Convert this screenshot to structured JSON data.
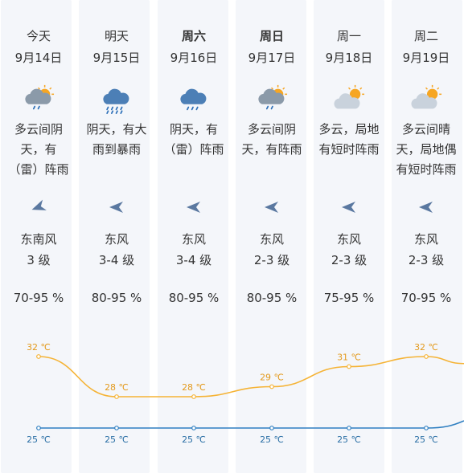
{
  "colors": {
    "column_bg": "#f4f6fa",
    "high_line": "#f5b335",
    "low_line": "#2f7fc1",
    "high_label": "#e39a1d",
    "low_label": "#2a6fa5",
    "arrow": "#5a78a0"
  },
  "days": [
    {
      "day": "今天",
      "bold": false,
      "date": "9月14日",
      "icon": "cloudy-rain-icon",
      "desc_lines": [
        "多云间阴",
        "天，有",
        "（雷）阵雨"
      ],
      "wind_dir": "东南风",
      "wind_level": "3 级",
      "humidity": "70-95 %",
      "high": "32 ℃",
      "low": "25 ℃"
    },
    {
      "day": "明天",
      "bold": false,
      "date": "9月15日",
      "icon": "heavy-rain-icon",
      "desc_lines": [
        "阴天，有大",
        "雨到暴雨"
      ],
      "wind_dir": "东风",
      "wind_level": "3-4 级",
      "humidity": "80-95 %",
      "high": "28 ℃",
      "low": "25 ℃"
    },
    {
      "day": "周六",
      "bold": true,
      "date": "9月16日",
      "icon": "rain-icon",
      "desc_lines": [
        "阴天，有",
        "（雷）阵雨"
      ],
      "wind_dir": "东风",
      "wind_level": "3-4 级",
      "humidity": "80-95 %",
      "high": "28 ℃",
      "low": "25 ℃"
    },
    {
      "day": "周日",
      "bold": true,
      "date": "9月17日",
      "icon": "cloudy-rain-icon",
      "desc_lines": [
        "多云间阴",
        "天，有阵雨"
      ],
      "wind_dir": "东风",
      "wind_level": "2-3 级",
      "humidity": "80-95 %",
      "high": "29 ℃",
      "low": "25 ℃"
    },
    {
      "day": "周一",
      "bold": false,
      "date": "9月18日",
      "icon": "sun-cloud-icon",
      "desc_lines": [
        "多云，局地",
        "有短时阵雨"
      ],
      "wind_dir": "东风",
      "wind_level": "2-3 级",
      "humidity": "75-95 %",
      "high": "31 ℃",
      "low": "25 ℃"
    },
    {
      "day": "周二",
      "bold": false,
      "date": "9月19日",
      "icon": "sun-cloud-icon",
      "desc_lines": [
        "多云间晴",
        "天，局地偶",
        "有短时阵雨"
      ],
      "wind_dir": "东风",
      "wind_level": "2-3 级",
      "humidity": "70-95 %",
      "high": "32 ℃",
      "low": "25 ℃"
    }
  ],
  "chart_data": {
    "type": "line",
    "x": [
      "9月14日",
      "9月15日",
      "9月16日",
      "9月17日",
      "9月18日",
      "9月19日"
    ],
    "series": [
      {
        "values": [
          32,
          28,
          28,
          29,
          31,
          32
        ]
      },
      {
        "values": [
          25,
          25,
          25,
          25,
          25,
          25
        ]
      }
    ]
  }
}
